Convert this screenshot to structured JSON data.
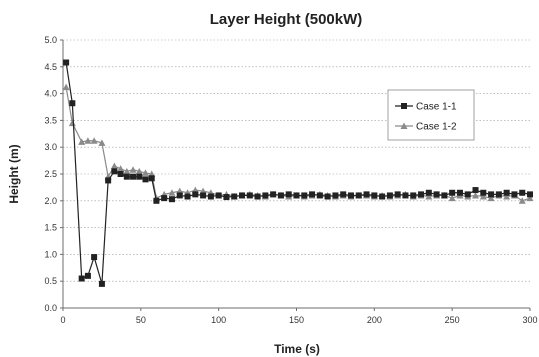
{
  "chart_data": {
    "type": "line",
    "title": "Layer Height  (500kW)",
    "xlabel": "Time (s)",
    "ylabel": "Height (m)",
    "xlim": [
      0,
      300
    ],
    "ylim": [
      0.0,
      5.0
    ],
    "xticks": [
      0,
      50,
      100,
      150,
      200,
      250,
      300
    ],
    "xtick_labels": [
      "0",
      "50",
      "100",
      "150",
      "200",
      "250",
      "300"
    ],
    "yticks": [
      0.0,
      0.5,
      1.0,
      1.5,
      2.0,
      2.5,
      3.0,
      3.5,
      4.0,
      4.5,
      5.0
    ],
    "ytick_labels": [
      "0.0",
      "0.5",
      "1.0",
      "1.5",
      "2.0",
      "2.5",
      "3.0",
      "3.5",
      "4.0",
      "4.5",
      "5.0"
    ],
    "grid": "horizontal dotted",
    "legend_position": "right, upper-middle",
    "series": [
      {
        "name": "Case 1-1",
        "color": "#222222",
        "marker": "square",
        "x": [
          2,
          6,
          12,
          16,
          20,
          25,
          29,
          33,
          37,
          41,
          45,
          49,
          53,
          57,
          60,
          65,
          70,
          75,
          80,
          85,
          90,
          95,
          100,
          105,
          110,
          115,
          120,
          125,
          130,
          135,
          140,
          145,
          150,
          155,
          160,
          165,
          170,
          175,
          180,
          185,
          190,
          195,
          200,
          205,
          210,
          215,
          220,
          225,
          230,
          235,
          240,
          245,
          250,
          255,
          260,
          265,
          270,
          275,
          280,
          285,
          290,
          295,
          300
        ],
        "y": [
          4.58,
          3.82,
          0.55,
          0.6,
          0.95,
          0.45,
          2.38,
          2.55,
          2.5,
          2.45,
          2.45,
          2.45,
          2.4,
          2.42,
          2.0,
          2.05,
          2.03,
          2.1,
          2.08,
          2.12,
          2.1,
          2.08,
          2.1,
          2.07,
          2.08,
          2.1,
          2.1,
          2.08,
          2.1,
          2.12,
          2.1,
          2.12,
          2.1,
          2.1,
          2.12,
          2.1,
          2.08,
          2.1,
          2.12,
          2.1,
          2.1,
          2.12,
          2.1,
          2.08,
          2.1,
          2.12,
          2.1,
          2.1,
          2.12,
          2.15,
          2.12,
          2.1,
          2.15,
          2.15,
          2.12,
          2.2,
          2.15,
          2.12,
          2.12,
          2.15,
          2.12,
          2.15,
          2.12
        ]
      },
      {
        "name": "Case 1-2",
        "color": "#8a8a8a",
        "marker": "triangle",
        "x": [
          2,
          6,
          12,
          16,
          20,
          25,
          29,
          33,
          37,
          41,
          45,
          49,
          53,
          57,
          60,
          65,
          70,
          75,
          80,
          85,
          90,
          95,
          100,
          105,
          110,
          115,
          120,
          125,
          130,
          135,
          140,
          145,
          150,
          155,
          160,
          165,
          170,
          175,
          180,
          185,
          190,
          195,
          200,
          205,
          210,
          215,
          220,
          225,
          230,
          235,
          240,
          245,
          250,
          255,
          260,
          265,
          270,
          275,
          280,
          285,
          290,
          295,
          300
        ],
        "y": [
          4.12,
          3.45,
          3.1,
          3.12,
          3.12,
          3.08,
          2.45,
          2.65,
          2.6,
          2.55,
          2.58,
          2.55,
          2.52,
          2.5,
          2.05,
          2.12,
          2.15,
          2.18,
          2.15,
          2.2,
          2.18,
          2.15,
          2.1,
          2.12,
          2.08,
          2.1,
          2.12,
          2.1,
          2.08,
          2.12,
          2.1,
          2.08,
          2.1,
          2.08,
          2.1,
          2.12,
          2.1,
          2.08,
          2.1,
          2.08,
          2.1,
          2.1,
          2.08,
          2.1,
          2.08,
          2.1,
          2.12,
          2.08,
          2.1,
          2.08,
          2.1,
          2.1,
          2.05,
          2.1,
          2.08,
          2.1,
          2.08,
          2.05,
          2.1,
          2.08,
          2.1,
          2.0,
          2.05
        ]
      }
    ]
  }
}
